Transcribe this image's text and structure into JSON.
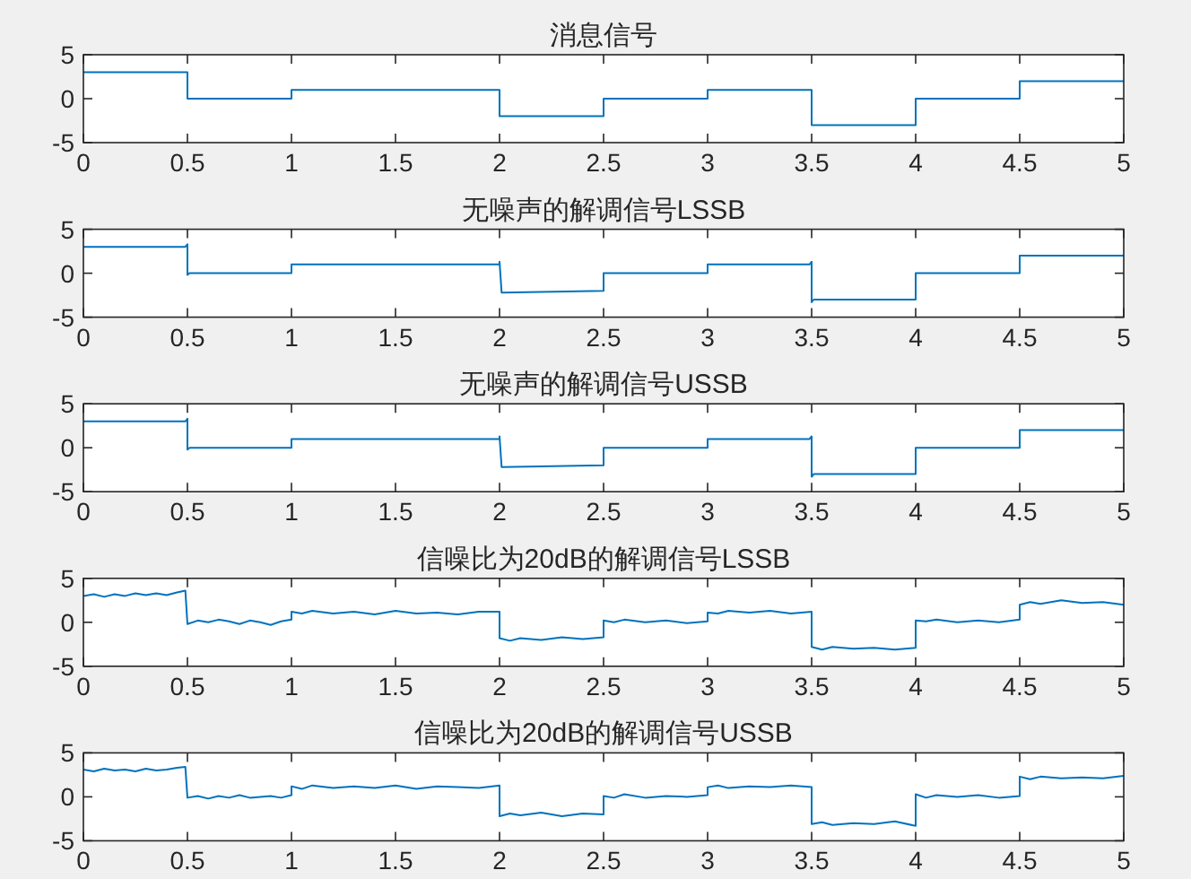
{
  "chart_data": [
    {
      "type": "line",
      "title": "消息信号",
      "x": [
        0,
        0.5,
        0.5,
        1,
        1,
        2,
        2,
        2.5,
        2.5,
        3,
        3,
        3.5,
        3.5,
        4,
        4,
        4.5,
        4.5,
        5
      ],
      "series": [
        {
          "color": "#0072bd",
          "values": [
            3,
            3,
            0,
            0,
            1,
            1,
            -2,
            -2,
            0,
            0,
            1,
            1,
            -3,
            -3,
            0,
            0,
            2,
            2
          ]
        }
      ],
      "xlim": [
        0,
        5
      ],
      "ylim": [
        -5,
        5
      ],
      "xticks": [
        0,
        0.5,
        1,
        1.5,
        2,
        2.5,
        3,
        3.5,
        4,
        4.5,
        5
      ],
      "yticks": [
        -5,
        0,
        5
      ]
    },
    {
      "type": "line",
      "title": "无噪声的解调信号LSSB",
      "x": [
        0,
        0.49,
        0.5,
        0.5,
        0.51,
        1,
        1,
        2,
        2,
        2.01,
        2.5,
        2.5,
        3,
        3,
        3.49,
        3.5,
        3.5,
        3.51,
        4,
        4,
        4.5,
        4.5,
        5
      ],
      "series": [
        {
          "color": "#0072bd",
          "values": [
            3,
            3,
            3.3,
            -0.2,
            0,
            0,
            1,
            1,
            1.3,
            -2.2,
            -2,
            0,
            0,
            1,
            1,
            1.3,
            -3.3,
            -3,
            -3,
            0,
            0,
            2,
            2
          ]
        }
      ],
      "xlim": [
        0,
        5
      ],
      "ylim": [
        -5,
        5
      ],
      "xticks": [
        0,
        0.5,
        1,
        1.5,
        2,
        2.5,
        3,
        3.5,
        4,
        4.5,
        5
      ],
      "yticks": [
        -5,
        0,
        5
      ]
    },
    {
      "type": "line",
      "title": "无噪声的解调信号USSB",
      "x": [
        0,
        0.49,
        0.5,
        0.5,
        0.51,
        1,
        1,
        2,
        2,
        2.01,
        2.5,
        2.5,
        3,
        3,
        3.49,
        3.5,
        3.5,
        3.51,
        4,
        4,
        4.5,
        4.5,
        5
      ],
      "series": [
        {
          "color": "#0072bd",
          "values": [
            3,
            3,
            3.3,
            -0.2,
            0,
            0,
            1,
            1,
            1.3,
            -2.2,
            -2,
            0,
            0,
            1,
            1,
            1.3,
            -3.3,
            -3,
            -3,
            0,
            0,
            2,
            2
          ]
        }
      ],
      "xlim": [
        0,
        5
      ],
      "ylim": [
        -5,
        5
      ],
      "xticks": [
        0,
        0.5,
        1,
        1.5,
        2,
        2.5,
        3,
        3.5,
        4,
        4.5,
        5
      ],
      "yticks": [
        -5,
        0,
        5
      ]
    },
    {
      "type": "line",
      "title": "信噪比为20dB的解调信号LSSB",
      "x": [
        0,
        0.05,
        0.1,
        0.15,
        0.2,
        0.25,
        0.3,
        0.35,
        0.4,
        0.45,
        0.49,
        0.5,
        0.55,
        0.6,
        0.65,
        0.7,
        0.75,
        0.8,
        0.85,
        0.9,
        0.95,
        1,
        1,
        1.05,
        1.1,
        1.2,
        1.3,
        1.4,
        1.5,
        1.6,
        1.7,
        1.8,
        1.9,
        2,
        2,
        2.05,
        2.1,
        2.2,
        2.3,
        2.4,
        2.5,
        2.5,
        2.55,
        2.6,
        2.7,
        2.8,
        2.9,
        3,
        3,
        3.05,
        3.1,
        3.2,
        3.3,
        3.4,
        3.5,
        3.5,
        3.55,
        3.6,
        3.7,
        3.8,
        3.9,
        4,
        4,
        4.05,
        4.1,
        4.2,
        4.3,
        4.4,
        4.5,
        4.5,
        4.55,
        4.6,
        4.7,
        4.8,
        4.9,
        5
      ],
      "series": [
        {
          "color": "#0072bd",
          "values": [
            3,
            3.2,
            2.9,
            3.2,
            3,
            3.3,
            3.1,
            3.3,
            3.1,
            3.4,
            3.6,
            -0.2,
            0.2,
            0,
            0.3,
            0.1,
            -0.2,
            0.2,
            0,
            -0.3,
            0.1,
            0.3,
            1.2,
            1,
            1.3,
            1,
            1.2,
            0.9,
            1.3,
            1,
            1.1,
            0.9,
            1.2,
            1.2,
            -1.8,
            -2.1,
            -1.8,
            -2,
            -1.7,
            -1.9,
            -1.7,
            0.2,
            0,
            0.3,
            0,
            0.2,
            -0.1,
            0.1,
            1.1,
            1,
            1.3,
            1.1,
            1.3,
            1,
            1.2,
            -2.8,
            -3.1,
            -2.8,
            -3,
            -2.9,
            -3.1,
            -2.9,
            0.2,
            0.1,
            0.3,
            0,
            0.2,
            0,
            0.3,
            2,
            2.3,
            2.1,
            2.5,
            2.2,
            2.3,
            2
          ]
        }
      ],
      "xlim": [
        0,
        5
      ],
      "ylim": [
        -5,
        5
      ],
      "xticks": [
        0,
        0.5,
        1,
        1.5,
        2,
        2.5,
        3,
        3.5,
        4,
        4.5,
        5
      ],
      "yticks": [
        -5,
        0,
        5
      ]
    },
    {
      "type": "line",
      "title": "信噪比为20dB的解调信号USSB",
      "x": [
        0,
        0.05,
        0.1,
        0.15,
        0.2,
        0.25,
        0.3,
        0.35,
        0.4,
        0.45,
        0.49,
        0.5,
        0.55,
        0.6,
        0.65,
        0.7,
        0.75,
        0.8,
        0.85,
        0.9,
        0.95,
        1,
        1,
        1.05,
        1.1,
        1.2,
        1.3,
        1.4,
        1.5,
        1.6,
        1.7,
        1.8,
        1.9,
        2,
        2,
        2.05,
        2.1,
        2.2,
        2.3,
        2.4,
        2.5,
        2.5,
        2.55,
        2.6,
        2.7,
        2.8,
        2.9,
        3,
        3,
        3.05,
        3.1,
        3.2,
        3.3,
        3.4,
        3.5,
        3.5,
        3.55,
        3.6,
        3.7,
        3.8,
        3.9,
        4,
        4,
        4.05,
        4.1,
        4.2,
        4.3,
        4.4,
        4.5,
        4.5,
        4.55,
        4.6,
        4.7,
        4.8,
        4.9,
        5
      ],
      "series": [
        {
          "color": "#0072bd",
          "values": [
            3.1,
            2.9,
            3.2,
            3,
            3.1,
            2.9,
            3.2,
            3,
            3.1,
            3.3,
            3.4,
            -0.1,
            0.1,
            -0.2,
            0.1,
            -0.1,
            0.2,
            -0.1,
            0,
            0.1,
            -0.1,
            0.2,
            1.2,
            0.9,
            1.3,
            1,
            1.2,
            1,
            1.3,
            0.9,
            1.2,
            1.1,
            1,
            1.3,
            -2.2,
            -1.9,
            -2.1,
            -1.8,
            -2.2,
            -1.9,
            -2,
            0.1,
            -0.1,
            0.3,
            -0.1,
            0.1,
            0,
            0.2,
            1.1,
            1.3,
            1,
            1.2,
            1.1,
            1.3,
            1.1,
            -3.1,
            -2.9,
            -3.2,
            -3,
            -3.1,
            -2.8,
            -3.3,
            0.3,
            -0.1,
            0.2,
            0,
            0.2,
            -0.1,
            0.1,
            2.3,
            2,
            2.3,
            2.1,
            2.2,
            2.1,
            2.4
          ]
        }
      ],
      "xlim": [
        0,
        5
      ],
      "ylim": [
        -5,
        5
      ],
      "xticks": [
        0,
        0.5,
        1,
        1.5,
        2,
        2.5,
        3,
        3.5,
        4,
        4.5,
        5
      ],
      "yticks": [
        -5,
        0,
        5
      ]
    }
  ]
}
